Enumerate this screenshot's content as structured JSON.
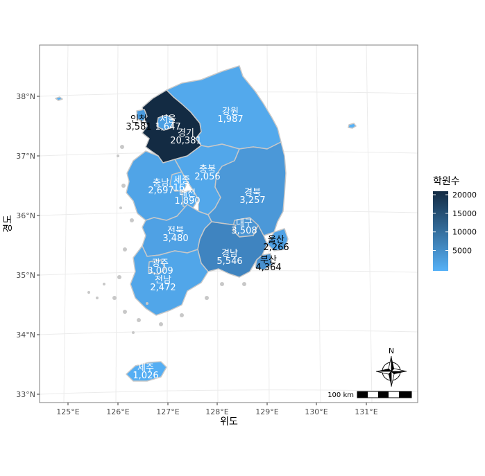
{
  "x_axis": {
    "title": "위도",
    "ticks": [
      "125°E",
      "126°E",
      "127°E",
      "128°E",
      "129°E",
      "130°E",
      "131°E"
    ]
  },
  "y_axis": {
    "title": "경도",
    "ticks": [
      "38°N",
      "37°N",
      "36°N",
      "35°N",
      "34°N",
      "33°N"
    ]
  },
  "legend": {
    "title": "학원수",
    "ticks": [
      "5000",
      "10000",
      "15000",
      "20000"
    ]
  },
  "scale_bar": {
    "label": "100 km"
  },
  "north_arrow": {
    "label": "N"
  },
  "regions": [
    {
      "name": "서울",
      "value_text": "1,647",
      "value": 1647,
      "fill": "#4b9fe3",
      "label_color": "#ffffff"
    },
    {
      "name": "인천",
      "value_text": "3,581",
      "value": 3581,
      "fill": "#4a9ce0",
      "label_color": "#000000"
    },
    {
      "name": "경기",
      "value_text": "20,381",
      "value": 20381,
      "fill": "#132b43",
      "label_color": "#ffffff"
    },
    {
      "name": "강원",
      "value_text": "1,987",
      "value": 1987,
      "fill": "#53a9ec",
      "label_color": "#ffffff"
    },
    {
      "name": "충북",
      "value_text": "2,056",
      "value": 2056,
      "fill": "#52a7ea",
      "label_color": "#ffffff"
    },
    {
      "name": "충남",
      "value_text": "2,697",
      "value": 2697,
      "fill": "#50a4e7",
      "label_color": "#ffffff"
    },
    {
      "name": "세종",
      "value_text": "167",
      "value": 167,
      "fill": "#56b1f7",
      "label_color": "#ffffff"
    },
    {
      "name": "대전",
      "value_text": "1,890",
      "value": 1890,
      "fill": "#53a8eb",
      "label_color": "#ffffff"
    },
    {
      "name": "경북",
      "value_text": "3,257",
      "value": 3257,
      "fill": "#4b98d8",
      "label_color": "#ffffff"
    },
    {
      "name": "대구",
      "value_text": "3,508",
      "value": 3508,
      "fill": "#4a95d4",
      "label_color": "#ffffff"
    },
    {
      "name": "울산",
      "value_text": "2,266",
      "value": 2266,
      "fill": "#50a2e5",
      "label_color": "#000000"
    },
    {
      "name": "전북",
      "value_text": "3,480",
      "value": 3480,
      "fill": "#4fa1e4",
      "label_color": "#ffffff"
    },
    {
      "name": "광주",
      "value_text": "3,009",
      "value": 3009,
      "fill": "#4fa1e4",
      "label_color": "#ffffff"
    },
    {
      "name": "전남",
      "value_text": "2,472",
      "value": 2472,
      "fill": "#51a6e9",
      "label_color": "#ffffff"
    },
    {
      "name": "경남",
      "value_text": "5,546",
      "value": 5546,
      "fill": "#3f84c0",
      "label_color": "#ffffff"
    },
    {
      "name": "부산",
      "value_text": "4,364",
      "value": 4364,
      "fill": "#4890cf",
      "label_color": "#000000"
    },
    {
      "name": "제주",
      "value_text": "1,026",
      "value": 1026,
      "fill": "#55aef3",
      "label_color": "#ffffff"
    }
  ],
  "colors": {
    "panel_border": "#7f7f7f",
    "grid": "#ebebeb",
    "region_border": "#c8c8c8",
    "gradient_low": "#56b1f7",
    "gradient_high": "#132b43"
  }
}
